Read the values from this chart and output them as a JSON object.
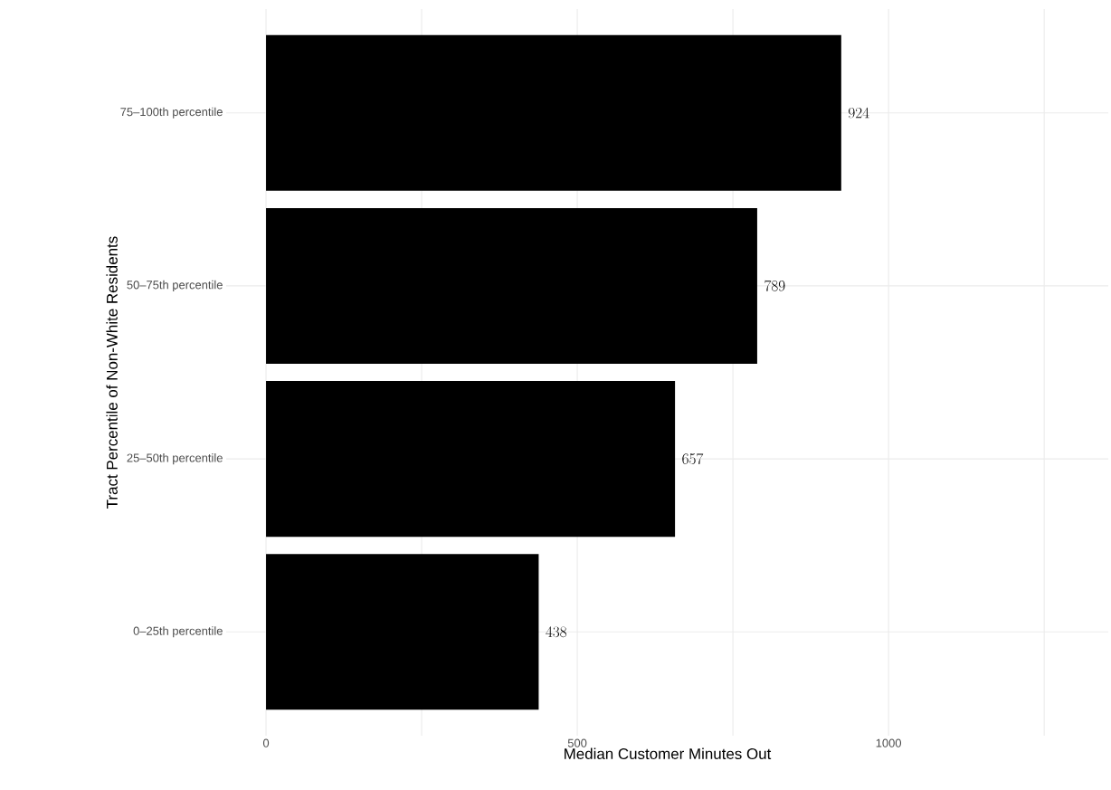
{
  "chart_data": {
    "type": "bar",
    "orientation": "horizontal",
    "xlabel": "Median Customer Minutes Out",
    "ylabel": "Tract Percentile of Non-White Residents",
    "categories": [
      "75–100th percentile",
      "50–75th percentile",
      "25–50th percentile",
      "0–25th percentile"
    ],
    "values": [
      924,
      789,
      657,
      438
    ],
    "color": "#000000",
    "data_labels": true,
    "xlim": [
      -64,
      1353
    ],
    "xticks": [
      0,
      {
        "value": 250,
        "label": null
      },
      500,
      {
        "value": 750,
        "label": null
      },
      1000,
      {
        "value": 1250,
        "label": null
      }
    ],
    "grid": true
  }
}
